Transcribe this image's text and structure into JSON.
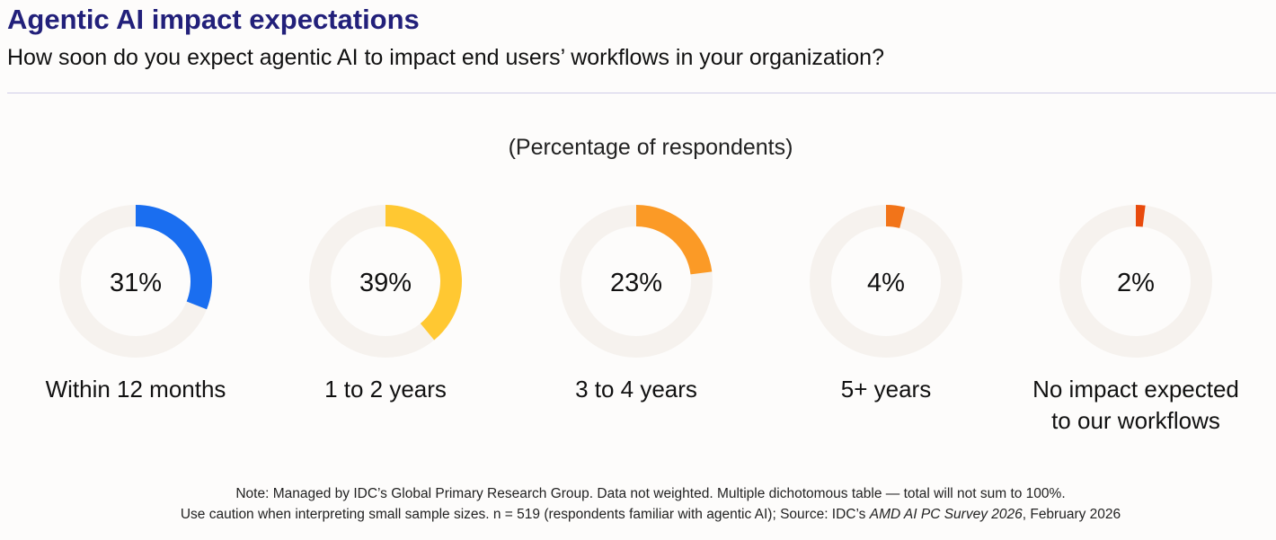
{
  "header": {
    "title": "Agentic AI impact expectations",
    "subtitle": "How soon do you expect agentic AI to impact end users’ workflows in your organization?"
  },
  "chart_data": {
    "type": "pie",
    "variant": "donut-small-multiples",
    "title": "Agentic AI impact expectations",
    "subtitle": "(Percentage of respondents)",
    "unit": "%",
    "categories": [
      "Within 12 months",
      "1 to 2 years",
      "3 to 4 years",
      "5+ years",
      "No impact expected to our workflows"
    ],
    "values": [
      31,
      39,
      23,
      4,
      2
    ],
    "labels": [
      "31%",
      "39%",
      "23%",
      "4%",
      "2%"
    ],
    "label_lines": [
      [
        "Within 12 months"
      ],
      [
        "1 to 2 years"
      ],
      [
        "3 to 4 years"
      ],
      [
        "5+ years"
      ],
      [
        "No impact expected",
        "to our workflows"
      ]
    ],
    "colors": [
      "#1a6ef0",
      "#ffc832",
      "#fb9a26",
      "#f27419",
      "#e84a0c"
    ],
    "track_color": "#f6f2ee",
    "max": 100
  },
  "footer": {
    "note_line1": "Note: Managed by IDC’s Global Primary Research Group. Data not weighted. Multiple dichotomous table — total will not sum to 100%.",
    "note_line2_prefix": "Use caution when interpreting small sample sizes. n = 519 (respondents familiar with agentic AI); Source: IDC’s ",
    "note_line2_italic": "AMD AI PC Survey 2026",
    "note_line2_suffix": ", February 2026"
  }
}
